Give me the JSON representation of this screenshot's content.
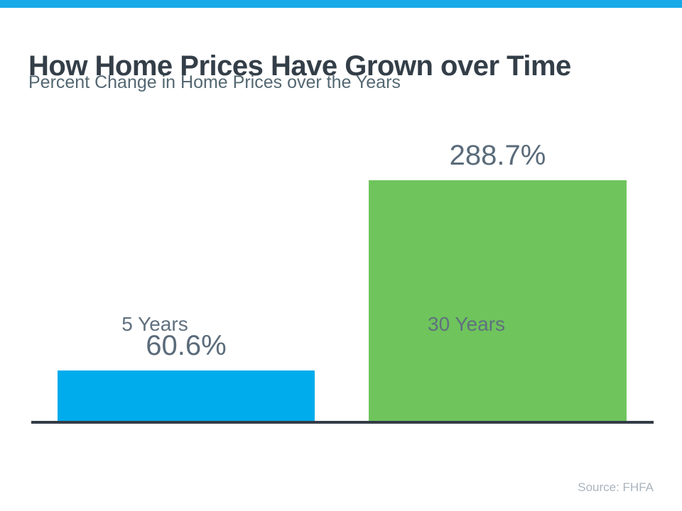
{
  "page": {
    "title": "How Home Prices Have Grown over Time",
    "subtitle": "Percent Change in Home Prices over the Years",
    "source": "Source: FHFA"
  },
  "colors": {
    "top_accent": "#18A9E8",
    "axis_line": "#333B46",
    "title_text": "#333E48",
    "subtitle_text": "#546872",
    "value_label_text": "#5A6B7A",
    "axis_label_text": "#60707F",
    "source_text": "#AAB4BE"
  },
  "chart_data": {
    "type": "bar",
    "title": "How Home Prices Have Grown over Time",
    "subtitle": "Percent Change in Home Prices over the Years",
    "categories": [
      "5 Years",
      "30 Years"
    ],
    "values": [
      60.6,
      288.7
    ],
    "value_labels": [
      "60.6%",
      "288.7%"
    ],
    "bar_colors": [
      "#00ACEC",
      "#6FC45C"
    ],
    "xlabel": "",
    "ylabel": "",
    "ylim": [
      0,
      360
    ],
    "grid": false,
    "legend": false,
    "annotations": [
      "Source: FHFA"
    ]
  }
}
